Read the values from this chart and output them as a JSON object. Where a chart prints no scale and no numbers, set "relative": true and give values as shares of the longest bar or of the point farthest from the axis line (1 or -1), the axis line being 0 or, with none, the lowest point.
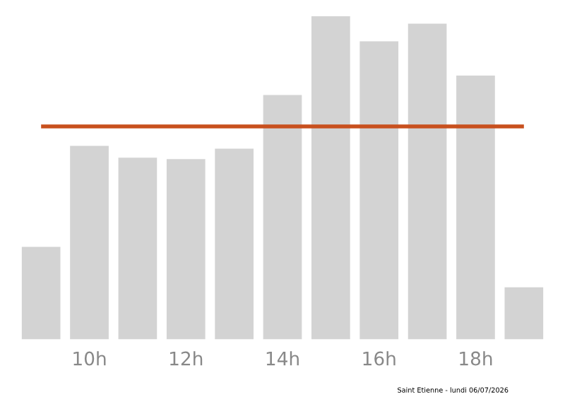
{
  "chart_data": {
    "type": "bar",
    "relative": true,
    "categories": [
      null,
      "10h",
      null,
      "12h",
      null,
      "14h",
      null,
      "16h",
      null,
      "18h",
      null
    ],
    "values": [
      0.286,
      0.599,
      0.562,
      0.558,
      0.59,
      0.756,
      1,
      0.922,
      0.977,
      0.816,
      0.161
    ],
    "color": "#d3d3d3",
    "ref_lines": [
      {
        "axis": "y",
        "value": 0.659,
        "color": "#c8501e",
        "line_style": "solid"
      }
    ],
    "annotations": [
      "Saint Etienne - lundi 06/07/2026"
    ],
    "grid": false,
    "legend": false
  }
}
